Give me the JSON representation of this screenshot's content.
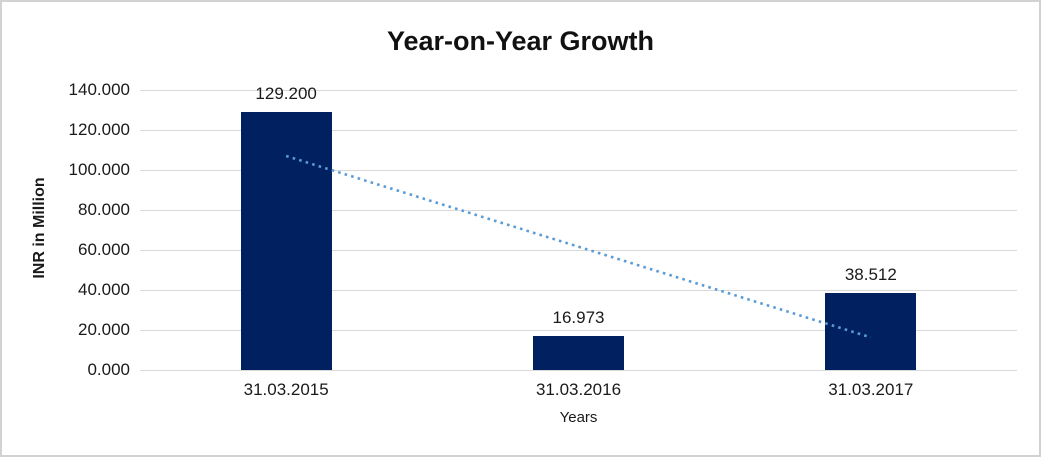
{
  "window": {
    "background": "#ffffff",
    "border_color": "#d2d2d2"
  },
  "chart_data": {
    "type": "bar",
    "title": "Year-on-Year Growth",
    "xlabel": "Years",
    "ylabel": "INR in Million",
    "categories": [
      "31.03.2015",
      "31.03.2016",
      "31.03.2017"
    ],
    "series": [
      {
        "name": "INR in Million",
        "values": [
          129.2,
          16.973,
          38.512
        ]
      }
    ],
    "data_labels": [
      "129.200",
      "16.973",
      "38.512"
    ],
    "ytick_labels": [
      "140.000",
      "120.000",
      "100.000",
      "80.000",
      "60.000",
      "40.000",
      "20.000",
      "0.000"
    ],
    "ylim": [
      0,
      140
    ],
    "ytick_step": 20,
    "grid": true,
    "legend": "none",
    "trendline": {
      "style": "dotted",
      "start_value": 107,
      "end_value": 16.3
    },
    "colors": {
      "bar": "#002060",
      "gridline": "#d9d9d9",
      "trendline": "#5b9bd5",
      "text": "#1a1a1a"
    }
  }
}
